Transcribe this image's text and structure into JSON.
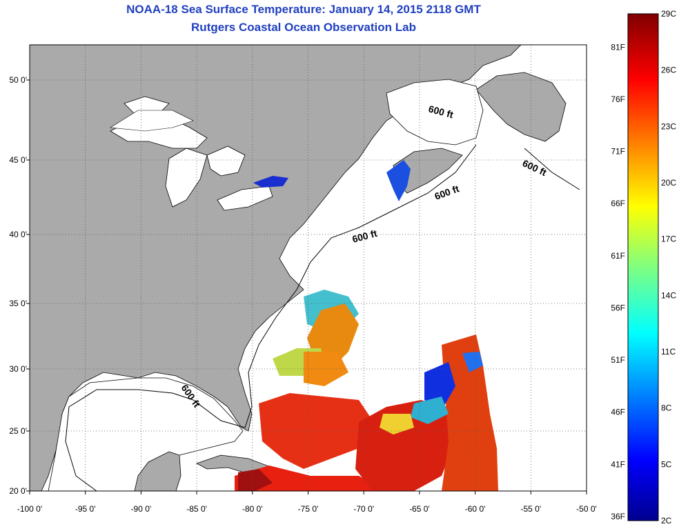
{
  "title_line1": "NOAA-18 Sea Surface Temperature:  January 14, 2015 2118 GMT",
  "title_line2": "Rutgers Coastal Ocean Observation Lab",
  "map": {
    "lon_ticks": [
      {
        "value": -100,
        "label": "-100 0'"
      },
      {
        "value": -95,
        "label": "-95 0'"
      },
      {
        "value": -90,
        "label": "-90 0'"
      },
      {
        "value": -85,
        "label": "-85 0'"
      },
      {
        "value": -80,
        "label": "-80 0'"
      },
      {
        "value": -75,
        "label": "-75 0'"
      },
      {
        "value": -70,
        "label": "-70 0'"
      },
      {
        "value": -65,
        "label": "-65 0'"
      },
      {
        "value": -60,
        "label": "-60 0'"
      },
      {
        "value": -55,
        "label": "-55 0'"
      },
      {
        "value": -50,
        "label": "-50 0'"
      }
    ],
    "lat_ticks": [
      {
        "value": 20,
        "label": "20 0'"
      },
      {
        "value": 25,
        "label": "25 0'"
      },
      {
        "value": 30,
        "label": "30 0'"
      },
      {
        "value": 35,
        "label": "35 0'"
      },
      {
        "value": 40,
        "label": "40 0'"
      },
      {
        "value": 45,
        "label": "45 0'"
      },
      {
        "value": 50,
        "label": "50 0'"
      }
    ],
    "contour_label": "600 ft",
    "colors": {
      "land": "#aaaaaa",
      "ocean": "#ffffff",
      "grid": "#555555"
    }
  },
  "colorbar": {
    "celsius": [
      "2C",
      "5C",
      "8C",
      "11C",
      "14C",
      "17C",
      "20C",
      "23C",
      "26C",
      "29C"
    ],
    "fahrenheit": [
      "36F",
      "41F",
      "46F",
      "51F",
      "56F",
      "61F",
      "66F",
      "71F",
      "76F",
      "81F"
    ]
  }
}
